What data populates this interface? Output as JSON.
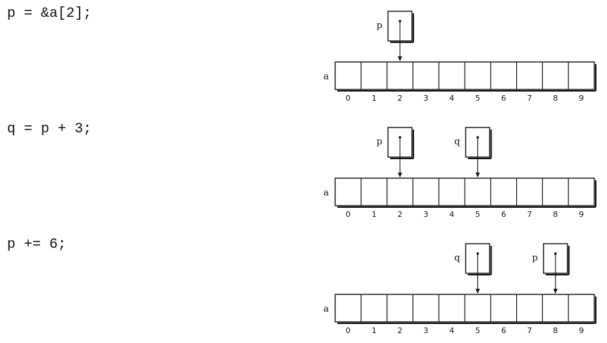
{
  "panels": [
    {
      "statement": "p = &a[2];",
      "array_label": "a",
      "indices": [
        "0",
        "1",
        "2",
        "3",
        "4",
        "5",
        "6",
        "7",
        "8",
        "9"
      ],
      "pointers": [
        {
          "name": "p",
          "index": 2
        }
      ]
    },
    {
      "statement": "q = p + 3;",
      "array_label": "a",
      "indices": [
        "0",
        "1",
        "2",
        "3",
        "4",
        "5",
        "6",
        "7",
        "8",
        "9"
      ],
      "pointers": [
        {
          "name": "p",
          "index": 2
        },
        {
          "name": "q",
          "index": 5
        }
      ]
    },
    {
      "statement": "p += 6;",
      "array_label": "a",
      "indices": [
        "0",
        "1",
        "2",
        "3",
        "4",
        "5",
        "6",
        "7",
        "8",
        "9"
      ],
      "pointers": [
        {
          "name": "q",
          "index": 5
        },
        {
          "name": "p",
          "index": 8
        }
      ]
    }
  ]
}
